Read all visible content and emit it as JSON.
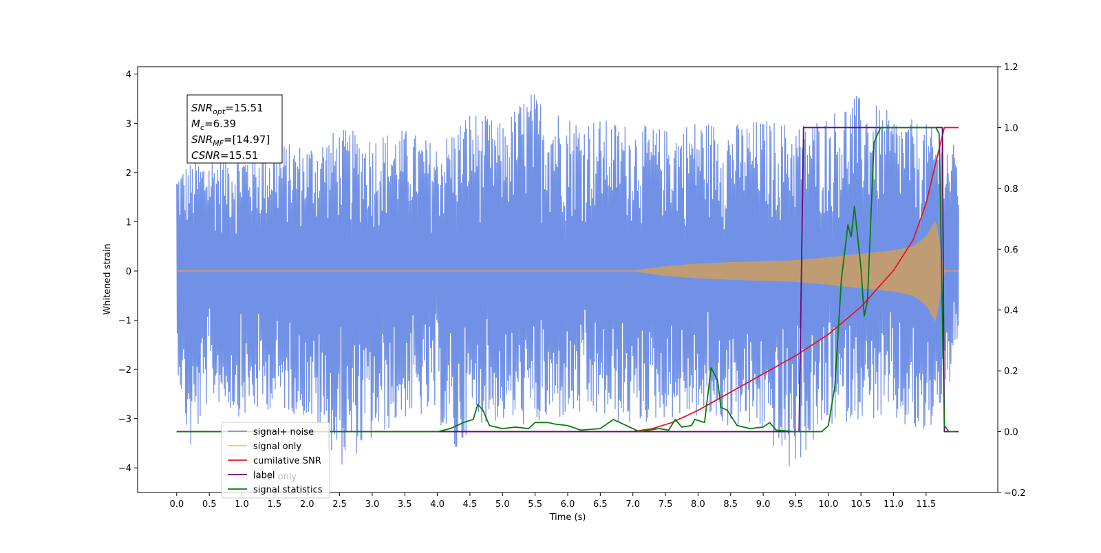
{
  "chart_data": {
    "type": "line",
    "title": "",
    "xlabel": "Time (s)",
    "ylabel": "Whitened strain",
    "y2label": "",
    "xlim": [
      -0.6,
      12.6
    ],
    "ylim": [
      -4.5,
      4.15
    ],
    "y2lim": [
      -0.2,
      1.2
    ],
    "x_ticks": [
      0.0,
      0.5,
      1.0,
      1.5,
      2.0,
      2.5,
      3.0,
      3.5,
      4.0,
      4.5,
      5.0,
      5.5,
      6.0,
      6.5,
      7.0,
      7.5,
      8.0,
      8.5,
      9.0,
      9.5,
      10.0,
      10.5,
      11.0,
      11.5
    ],
    "y_ticks": [
      -4,
      -3,
      -2,
      -1,
      0,
      1,
      2,
      3,
      4
    ],
    "y2_ticks": [
      -0.2,
      0.0,
      0.2,
      0.4,
      0.6,
      0.8,
      1.0,
      1.2
    ],
    "annotation": [
      {
        "base": "SNR",
        "sub": "opt",
        "value": "=15.51"
      },
      {
        "base": "M",
        "sub": "c",
        "value": "=6.39"
      },
      {
        "base": "SNR",
        "sub": "MF",
        "value": "=[14.97]"
      },
      {
        "base": "CSNR",
        "sub": "",
        "value": "=15.51"
      }
    ],
    "legend_position": "lower-left",
    "legend": [
      {
        "label": "signal+ noise",
        "color": "#7191e6"
      },
      {
        "label": "signal only",
        "color": "#f5c06a"
      },
      {
        "label": "cumilative SNR",
        "color": "#e8141c"
      },
      {
        "label": "label",
        "color": "#6a0a78"
      },
      {
        "label": "signal statistics",
        "color": "#0a7a0a"
      }
    ],
    "ghost_legend_text": [
      "label only"
    ],
    "series": [
      {
        "name": "signal+ noise",
        "axis": "left",
        "color": "#7191e6",
        "x_range": [
          0.0,
          12.0
        ],
        "envelope_upper": [
          [
            0,
            2.1
          ],
          [
            0.5,
            2.4
          ],
          [
            1.0,
            2.5
          ],
          [
            1.5,
            2.6
          ],
          [
            2.0,
            2.6
          ],
          [
            2.5,
            2.9
          ],
          [
            3.0,
            2.8
          ],
          [
            3.5,
            2.9
          ],
          [
            4.0,
            2.6
          ],
          [
            4.5,
            3.3
          ],
          [
            5.0,
            3.0
          ],
          [
            5.4,
            3.7
          ],
          [
            6.0,
            3.2
          ],
          [
            6.5,
            3.1
          ],
          [
            7.0,
            3.0
          ],
          [
            7.5,
            2.9
          ],
          [
            8.0,
            3.1
          ],
          [
            8.5,
            3.0
          ],
          [
            9.0,
            3.1
          ],
          [
            9.5,
            3.0
          ],
          [
            10.0,
            3.2
          ],
          [
            10.4,
            3.6
          ],
          [
            11.0,
            3.2
          ],
          [
            11.5,
            3.0
          ],
          [
            12.0,
            2.5
          ]
        ],
        "envelope_lower": [
          [
            0,
            -1.9
          ],
          [
            0.2,
            -3.8
          ],
          [
            0.5,
            -2.6
          ],
          [
            1.0,
            -3.0
          ],
          [
            1.5,
            -2.8
          ],
          [
            2.0,
            -3.0
          ],
          [
            2.5,
            -4.0
          ],
          [
            3.0,
            -3.5
          ],
          [
            3.5,
            -3.0
          ],
          [
            4.0,
            -3.0
          ],
          [
            4.3,
            -3.9
          ],
          [
            4.5,
            -3.1
          ],
          [
            5.0,
            -3.1
          ],
          [
            5.5,
            -3.2
          ],
          [
            6.0,
            -3.0
          ],
          [
            6.5,
            -3.0
          ],
          [
            7.0,
            -3.2
          ],
          [
            7.5,
            -3.0
          ],
          [
            8.0,
            -3.0
          ],
          [
            8.5,
            -3.2
          ],
          [
            9.0,
            -3.3
          ],
          [
            9.4,
            -4.1
          ],
          [
            10.0,
            -3.2
          ],
          [
            10.5,
            -3.0
          ],
          [
            11.0,
            -3.1
          ],
          [
            11.5,
            -3.5
          ],
          [
            12.0,
            -1.9
          ]
        ]
      },
      {
        "name": "signal only",
        "axis": "left",
        "color": "#f5c06a",
        "fill_color": "#c09c74",
        "envelope": [
          [
            0,
            0.0
          ],
          [
            7.0,
            0.01
          ],
          [
            7.5,
            0.1
          ],
          [
            8.0,
            0.15
          ],
          [
            8.5,
            0.18
          ],
          [
            9.0,
            0.2
          ],
          [
            9.5,
            0.22
          ],
          [
            10.0,
            0.28
          ],
          [
            10.5,
            0.35
          ],
          [
            11.0,
            0.42
          ],
          [
            11.3,
            0.5
          ],
          [
            11.5,
            0.7
          ],
          [
            11.65,
            1.05
          ],
          [
            11.78,
            0.0
          ],
          [
            12.0,
            0.0
          ]
        ]
      },
      {
        "name": "cumilative SNR",
        "axis": "right",
        "color": "#e8141c",
        "points": [
          [
            0,
            0.0
          ],
          [
            7.0,
            0.0
          ],
          [
            7.3,
            0.01
          ],
          [
            7.6,
            0.03
          ],
          [
            8.0,
            0.07
          ],
          [
            8.5,
            0.13
          ],
          [
            9.0,
            0.19
          ],
          [
            9.5,
            0.25
          ],
          [
            10.0,
            0.32
          ],
          [
            10.5,
            0.41
          ],
          [
            11.0,
            0.53
          ],
          [
            11.3,
            0.63
          ],
          [
            11.5,
            0.75
          ],
          [
            11.6,
            0.84
          ],
          [
            11.7,
            0.93
          ],
          [
            11.78,
            1.0
          ],
          [
            12.0,
            1.0
          ]
        ]
      },
      {
        "name": "label",
        "axis": "right",
        "color": "#6a0a78",
        "points": [
          [
            0,
            0.0
          ],
          [
            9.55,
            0.0
          ],
          [
            9.62,
            1.0
          ],
          [
            11.75,
            1.0
          ],
          [
            11.78,
            0.0
          ],
          [
            12.0,
            0.0
          ]
        ]
      },
      {
        "name": "signal statistics",
        "axis": "right",
        "color": "#0a7a0a",
        "points": [
          [
            0,
            0.0
          ],
          [
            4.0,
            0.0
          ],
          [
            4.2,
            0.01
          ],
          [
            4.4,
            0.03
          ],
          [
            4.55,
            0.04
          ],
          [
            4.62,
            0.09
          ],
          [
            4.7,
            0.07
          ],
          [
            4.8,
            0.02
          ],
          [
            5.0,
            0.01
          ],
          [
            5.2,
            0.015
          ],
          [
            5.4,
            0.01
          ],
          [
            5.5,
            0.03
          ],
          [
            5.7,
            0.03
          ],
          [
            5.8,
            0.025
          ],
          [
            6.0,
            0.02
          ],
          [
            6.2,
            0.005
          ],
          [
            6.5,
            0.01
          ],
          [
            6.7,
            0.04
          ],
          [
            6.9,
            0.02
          ],
          [
            7.1,
            0.0
          ],
          [
            7.4,
            0.01
          ],
          [
            7.55,
            0.005
          ],
          [
            7.65,
            0.04
          ],
          [
            7.75,
            0.015
          ],
          [
            7.9,
            0.02
          ],
          [
            7.95,
            0.04
          ],
          [
            8.1,
            0.03
          ],
          [
            8.2,
            0.21
          ],
          [
            8.3,
            0.17
          ],
          [
            8.35,
            0.08
          ],
          [
            8.45,
            0.07
          ],
          [
            8.6,
            0.02
          ],
          [
            8.8,
            0.01
          ],
          [
            9.0,
            0.015
          ],
          [
            9.1,
            0.03
          ],
          [
            9.2,
            0.005
          ],
          [
            9.5,
            0.0
          ],
          [
            9.9,
            0.0
          ],
          [
            10.0,
            0.02
          ],
          [
            10.1,
            0.15
          ],
          [
            10.2,
            0.5
          ],
          [
            10.3,
            0.68
          ],
          [
            10.35,
            0.64
          ],
          [
            10.4,
            0.74
          ],
          [
            10.5,
            0.54
          ],
          [
            10.55,
            0.38
          ],
          [
            10.6,
            0.43
          ],
          [
            10.7,
            0.95
          ],
          [
            10.8,
            1.0
          ],
          [
            11.65,
            1.0
          ],
          [
            11.7,
            0.98
          ],
          [
            11.78,
            0.02
          ],
          [
            11.85,
            0.0
          ],
          [
            11.95,
            0.0
          ]
        ]
      }
    ]
  }
}
